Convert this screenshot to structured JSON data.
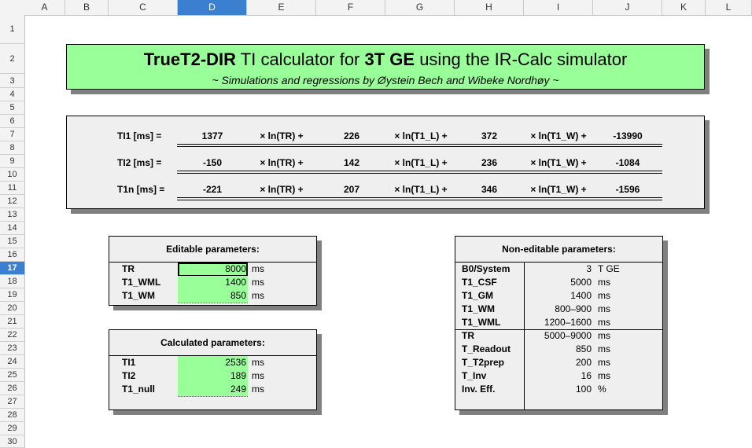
{
  "columns": [
    "A",
    "B",
    "C",
    "D",
    "E",
    "F",
    "G",
    "H",
    "I",
    "J",
    "K",
    "L"
  ],
  "selected_column": "D",
  "rows": [
    "1",
    "2",
    "3",
    "4",
    "5",
    "6",
    "7",
    "8",
    "9",
    "10",
    "11",
    "12",
    "13",
    "14",
    "15",
    "16",
    "17",
    "18",
    "19",
    "20",
    "21",
    "22",
    "23",
    "24",
    "25",
    "26",
    "27",
    "28",
    "29",
    "30"
  ],
  "selected_row": "17",
  "title": {
    "part1": "TrueT2-DIR",
    "part2": " TI calculator for ",
    "part3": "3T GE",
    "part4": " using the IR-Calc simulator",
    "subtitle": "~ Simulations and regressions by Øystein Bech and Wibeke Nordhøy ~"
  },
  "equations": [
    {
      "label": "TI1 [ms] =",
      "c1": "1377",
      "op1": "× ln(TR) +",
      "c2": "226",
      "op2": "× ln(T1_L) +",
      "c3": "372",
      "op3": "× ln(T1_W) +",
      "c4": "-13990"
    },
    {
      "label": "TI2 [ms] =",
      "c1": "-150",
      "op1": "× ln(TR) +",
      "c2": "142",
      "op2": "× ln(T1_L) +",
      "c3": "236",
      "op3": "× ln(T1_W) +",
      "c4": "-1084"
    },
    {
      "label": "T1n [ms] =",
      "c1": "-221",
      "op1": "× ln(TR) +",
      "c2": "207",
      "op2": "× ln(T1_L) +",
      "c3": "346",
      "op3": "× ln(T1_W) +",
      "c4": "-1596"
    }
  ],
  "editable": {
    "header": "Editable parameters:",
    "items": [
      {
        "name": "TR",
        "value": "8000",
        "unit": "ms"
      },
      {
        "name": "T1_WML",
        "value": "1400",
        "unit": "ms"
      },
      {
        "name": "T1_WM",
        "value": "850",
        "unit": "ms"
      }
    ]
  },
  "calculated": {
    "header": "Calculated parameters:",
    "items": [
      {
        "name": "TI1",
        "value": "2536",
        "unit": "ms"
      },
      {
        "name": "TI2",
        "value": "189",
        "unit": "ms"
      },
      {
        "name": "T1_null",
        "value": "249",
        "unit": "ms"
      }
    ]
  },
  "noneditable": {
    "header": "Non-editable parameters:",
    "items": [
      {
        "name": "B0/System",
        "value": "3",
        "unit": "T GE"
      },
      {
        "name": "T1_CSF",
        "value": "5000",
        "unit": "ms"
      },
      {
        "name": "T1_GM",
        "value": "1400",
        "unit": "ms"
      },
      {
        "name": "T1_WM",
        "value": "800–900",
        "unit": "ms"
      },
      {
        "name": "T1_WML",
        "value": "1200–1600",
        "unit": "ms"
      },
      {
        "name": "TR",
        "value": "5000–9000",
        "unit": "ms"
      },
      {
        "name": "T_Readout",
        "value": "850",
        "unit": "ms"
      },
      {
        "name": "T_T2prep",
        "value": "200",
        "unit": "ms"
      },
      {
        "name": "T_Inv",
        "value": "16",
        "unit": "ms"
      },
      {
        "name": "Inv. Eff.",
        "value": "100",
        "unit": "%"
      }
    ]
  }
}
